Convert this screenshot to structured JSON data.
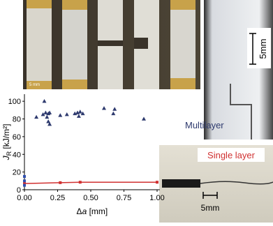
{
  "chart_data": {
    "type": "scatter",
    "xlabel": [
      "Δ",
      "a",
      " [mm]"
    ],
    "ylabel": [
      "J",
      "R",
      " [kJ/m²]"
    ],
    "xlim": [
      0,
      1.02
    ],
    "ylim": [
      0,
      108
    ],
    "xticks": [
      {
        "value": 0,
        "label": "0.00"
      },
      {
        "value": 0.25,
        "label": "0.25"
      },
      {
        "value": 0.5,
        "label": "0.50"
      },
      {
        "value": 0.75,
        "label": "0.75"
      },
      {
        "value": 1,
        "label": "1.00"
      }
    ],
    "yticks": [
      0,
      20,
      40,
      60,
      80,
      100
    ],
    "series": [
      {
        "name": "Multilayer",
        "color": "#2e3a6e",
        "marker": "triangle",
        "x": [
          0.09,
          0.14,
          0.15,
          0.16,
          0.17,
          0.18,
          0.18,
          0.19,
          0.19,
          0.27,
          0.32,
          0.38,
          0.4,
          0.41,
          0.42,
          0.44,
          0.6,
          0.67,
          0.68,
          0.9
        ],
        "values": [
          82,
          85,
          100,
          87,
          82,
          86,
          77,
          87,
          74,
          84,
          85,
          86,
          87,
          83,
          88,
          86,
          92,
          86,
          91,
          80
        ]
      },
      {
        "name": "Single layer",
        "color": "#d03030",
        "marker": "line",
        "x": [
          0,
          0.27,
          0.42,
          1.0
        ],
        "values": [
          7,
          8,
          8.5,
          8.5
        ]
      },
      {
        "color": "#3050b0",
        "marker": "square",
        "x": [
          0,
          0,
          0
        ],
        "values": [
          15,
          10,
          5
        ]
      }
    ],
    "annotations": [
      "5 mm",
      "5mm",
      "5mm"
    ]
  }
}
